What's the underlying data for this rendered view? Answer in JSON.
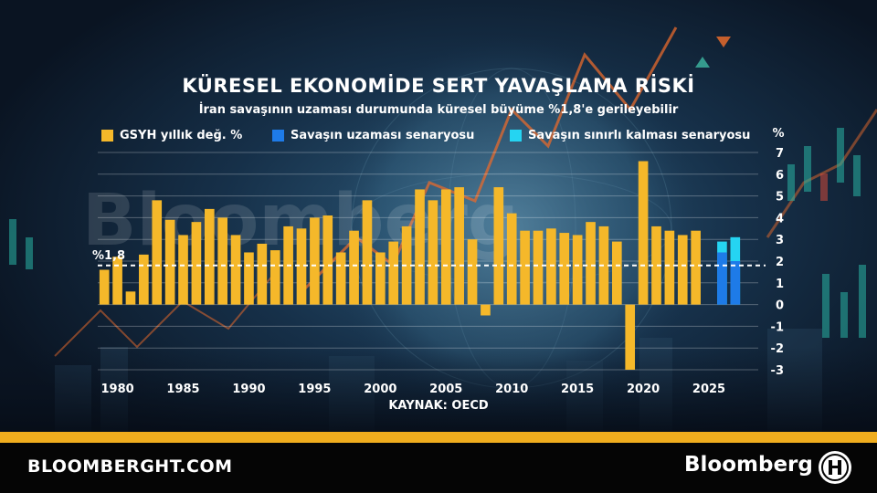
{
  "header": {
    "title": "KÜRESEL EKONOMİDE SERT YAVAŞLAMA RİSKİ",
    "subtitle": "İran savaşının uzaması durumunda küresel büyüme %1,8'e gerileyebilir"
  },
  "watermark": "Bloomberg",
  "source": "KAYNAK: OECD",
  "footer": {
    "site": "BLOOMBERGHT.COM",
    "brand": "Bloomberg"
  },
  "colors": {
    "gdp": "#f5b82a",
    "prolonged": "#1e7be8",
    "limited": "#25d4f2",
    "stripe": "#f0ad1e"
  },
  "chart_data": {
    "type": "bar",
    "ylabel": "%",
    "ylim": [
      -3,
      7
    ],
    "yticks": [
      -3,
      -2,
      -1,
      0,
      1,
      2,
      3,
      4,
      5,
      6,
      7
    ],
    "xticks": [
      1980,
      1985,
      1990,
      1995,
      2000,
      2005,
      2010,
      2015,
      2020,
      2025
    ],
    "reference_line": {
      "value": 1.8,
      "label": "%1,8"
    },
    "series": [
      {
        "name": "GSYH yıllık değ. %",
        "x": [
          1979,
          1980,
          1981,
          1982,
          1983,
          1984,
          1985,
          1986,
          1987,
          1988,
          1989,
          1990,
          1991,
          1992,
          1993,
          1994,
          1995,
          1996,
          1997,
          1998,
          1999,
          2000,
          2001,
          2002,
          2003,
          2004,
          2005,
          2006,
          2007,
          2008,
          2009,
          2010,
          2011,
          2012,
          2013,
          2014,
          2015,
          2016,
          2017,
          2018,
          2019,
          2020,
          2021,
          2022,
          2023,
          2024,
          2025
        ],
        "values": [
          1.6,
          2.2,
          0.6,
          2.3,
          4.8,
          3.9,
          3.2,
          3.8,
          4.4,
          4.0,
          3.2,
          2.4,
          2.8,
          2.5,
          3.6,
          3.5,
          4.0,
          4.1,
          2.4,
          3.4,
          4.8,
          2.4,
          2.9,
          3.6,
          5.3,
          4.8,
          5.3,
          5.4,
          3.0,
          -0.5,
          5.4,
          4.2,
          3.4,
          3.4,
          3.5,
          3.3,
          3.2,
          3.8,
          3.6,
          2.9,
          -3.0,
          6.6,
          3.6,
          3.4,
          3.2,
          3.4,
          0
        ]
      },
      {
        "name": "Savaşın uzaması senaryosu",
        "x": [
          2026,
          2027
        ],
        "values": [
          2.4,
          2.0
        ]
      },
      {
        "name": "Savaşın sınırlı kalması senaryosu",
        "x": [
          2026,
          2027
        ],
        "values": [
          2.9,
          3.1
        ]
      }
    ]
  }
}
